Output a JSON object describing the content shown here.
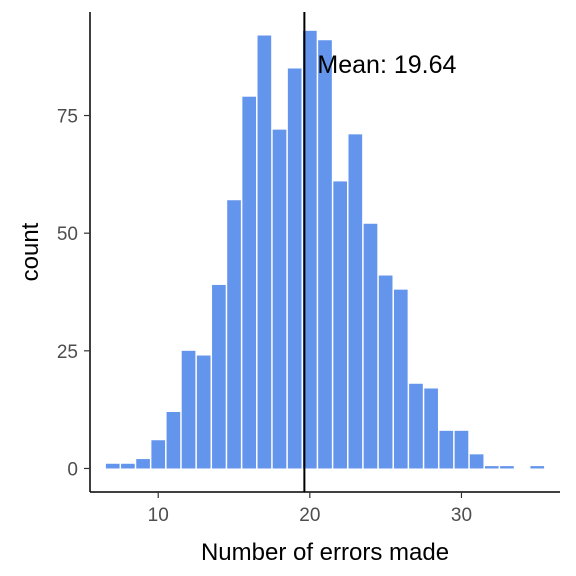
{
  "chart_data": {
    "type": "bar",
    "subtype": "histogram",
    "title": "",
    "xlabel": "Number of errors made",
    "ylabel": "count",
    "xlim": [
      5.5,
      36.5
    ],
    "ylim": [
      -5,
      97
    ],
    "x_ticks": [
      10,
      20,
      30
    ],
    "y_ticks": [
      0,
      25,
      50,
      75
    ],
    "bin_width": 1,
    "bar_color": "#6495ed",
    "grid": false,
    "legend": "none",
    "bins": [
      {
        "x": 7,
        "count": 1
      },
      {
        "x": 8,
        "count": 1
      },
      {
        "x": 9,
        "count": 2
      },
      {
        "x": 10,
        "count": 6
      },
      {
        "x": 11,
        "count": 12
      },
      {
        "x": 12,
        "count": 25
      },
      {
        "x": 13,
        "count": 24
      },
      {
        "x": 14,
        "count": 39
      },
      {
        "x": 15,
        "count": 57
      },
      {
        "x": 16,
        "count": 79
      },
      {
        "x": 17,
        "count": 92
      },
      {
        "x": 18,
        "count": 72
      },
      {
        "x": 19,
        "count": 85
      },
      {
        "x": 20,
        "count": 93
      },
      {
        "x": 21,
        "count": 91
      },
      {
        "x": 22,
        "count": 61
      },
      {
        "x": 23,
        "count": 71
      },
      {
        "x": 24,
        "count": 52
      },
      {
        "x": 25,
        "count": 41
      },
      {
        "x": 26,
        "count": 38
      },
      {
        "x": 27,
        "count": 18
      },
      {
        "x": 28,
        "count": 17
      },
      {
        "x": 29,
        "count": 8
      },
      {
        "x": 30,
        "count": 8
      },
      {
        "x": 31,
        "count": 3
      },
      {
        "x": 32,
        "count": 0.5
      },
      {
        "x": 33,
        "count": 0.5
      },
      {
        "x": 35,
        "count": 0.5
      }
    ],
    "mean": 19.64,
    "annotation": {
      "text": "Mean: 19.64",
      "x": 20.5,
      "y": 84
    }
  }
}
